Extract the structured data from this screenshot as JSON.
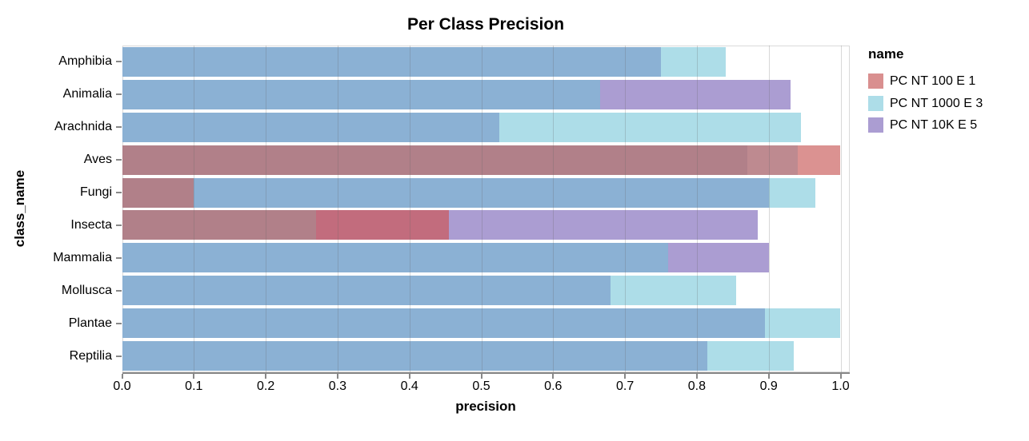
{
  "title": "Per Class Precision",
  "legend": {
    "title": "name",
    "entries": [
      {
        "label": "PC NT 100 E 1",
        "color": "#D98F8F"
      },
      {
        "label": "PC NT 1000 E 3",
        "color": "#ADDDE8"
      },
      {
        "label": "PC NT 10K E 5",
        "color": "#AB9DD2"
      }
    ]
  },
  "chart_data": {
    "type": "bar",
    "orientation": "horizontal",
    "title": "Per Class Precision",
    "xlabel": "precision",
    "ylabel": "class_name",
    "xlim": [
      0.0,
      1.0
    ],
    "xticks": [
      0.0,
      0.1,
      0.2,
      0.3,
      0.4,
      0.5,
      0.6,
      0.7,
      0.8,
      0.9,
      1.0
    ],
    "grid": true,
    "legend_position": "right",
    "overlay_style": "layered-translucent-bars",
    "categories": [
      "Amphibia",
      "Animalia",
      "Arachnida",
      "Aves",
      "Fungi",
      "Insecta",
      "Mammalia",
      "Mollusca",
      "Plantae",
      "Reptilia"
    ],
    "series": [
      {
        "name": "PC NT 100 E 1",
        "key": "s100",
        "color": "#D98F8F",
        "values": [
          null,
          null,
          null,
          1.0,
          0.1,
          0.455,
          null,
          null,
          null,
          null
        ]
      },
      {
        "name": "PC NT 1000 E 3",
        "key": "s1000",
        "color": "#ADDDE8",
        "values": [
          0.84,
          0.665,
          0.945,
          0.94,
          0.965,
          0.27,
          0.76,
          0.855,
          1.0,
          0.935
        ]
      },
      {
        "name": "PC NT 10K E 5",
        "key": "s10k",
        "color": "#AB9DD2",
        "values": [
          0.75,
          0.93,
          0.525,
          0.87,
          0.9,
          0.885,
          0.9,
          0.68,
          0.895,
          0.815
        ]
      }
    ],
    "overlap_colors": {
      "s100": "#DB9291",
      "s1000": "#ADDDE8",
      "s10k": "#AB9DD2",
      "s100+s1000": "#BE8A90",
      "s100+s10k": "#C26C7D",
      "s1000+s10k": "#8BB1D4",
      "s100+s1000+s10k": "#B18089"
    }
  }
}
